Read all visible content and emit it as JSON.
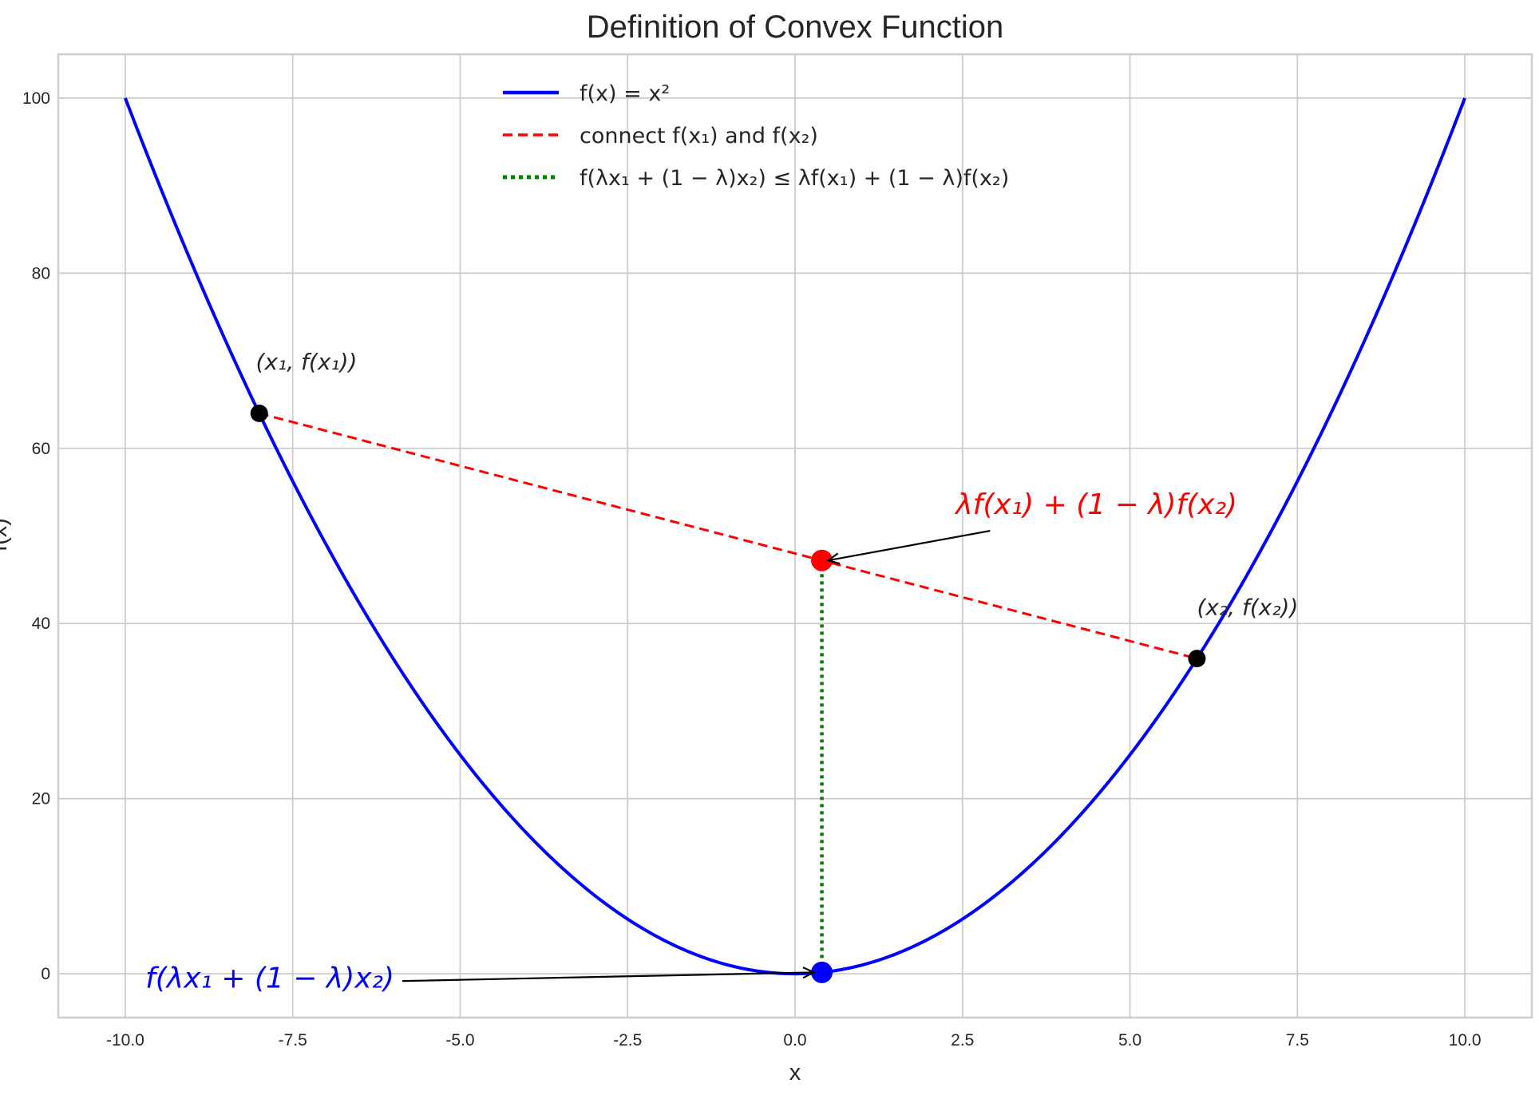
{
  "chart_data": {
    "type": "line",
    "title": "Definition of Convex Function",
    "xlabel": "x",
    "ylabel": "f(x)",
    "xlim": [
      -11,
      11
    ],
    "ylim": [
      -5,
      105
    ],
    "xticks": [
      -10.0,
      -7.5,
      -5.0,
      -2.5,
      0.0,
      2.5,
      5.0,
      7.5,
      10.0
    ],
    "xtick_labels": [
      "-10.0",
      "-7.5",
      "-5.0",
      "-2.5",
      "0.0",
      "2.5",
      "5.0",
      "7.5",
      "10.0"
    ],
    "yticks": [
      0,
      20,
      40,
      60,
      80,
      100
    ],
    "ytick_labels": [
      "0",
      "20",
      "40",
      "60",
      "80",
      "100"
    ],
    "grid": true,
    "legend_position": "top-center",
    "series": [
      {
        "name": "f(x) = x²",
        "kind": "curve",
        "function": "x^2",
        "x_range": [
          -10,
          10
        ],
        "color": "#0000ff",
        "style": "solid"
      },
      {
        "name": "connect f(x₁) and f(x₂)",
        "kind": "segment",
        "x": [
          -8,
          6
        ],
        "y": [
          64,
          36
        ],
        "color": "#ff0000",
        "style": "dashed"
      },
      {
        "name": "f(λx₁ + (1 − λ)x₂) ≤ λf(x₁) + (1 − λ)f(x₂)",
        "kind": "segment",
        "x": [
          0.4,
          0.4
        ],
        "y": [
          0.16,
          47.2
        ],
        "color": "#008000",
        "style": "dotted"
      }
    ],
    "points": [
      {
        "x": -8,
        "y": 64,
        "color": "#000000"
      },
      {
        "x": 6,
        "y": 36,
        "color": "#000000"
      },
      {
        "x": 0.4,
        "y": 47.2,
        "color": "#ff0000"
      },
      {
        "x": 0.4,
        "y": 0.16,
        "color": "#0000ff"
      }
    ],
    "annotations": [
      {
        "text": "(x₁, f(x₁))",
        "x": -8.05,
        "y": 69,
        "color": "#262626"
      },
      {
        "text": "(x₂, f(x₂))",
        "x": 6.0,
        "y": 41,
        "color": "#262626"
      },
      {
        "text": "λf(x₁) + (1 − λ)f(x₂)",
        "x": 2.4,
        "y": 52.5,
        "color": "#ff0000",
        "arrow_to": [
          0.4,
          47.2
        ]
      },
      {
        "text": "f(λx₁ + (1 − λ)x₂)",
        "x": -9.7,
        "y": -1.6,
        "color": "#0000ff",
        "arrow_to": [
          0.4,
          0.16
        ]
      }
    ],
    "lambda": 0.4
  }
}
